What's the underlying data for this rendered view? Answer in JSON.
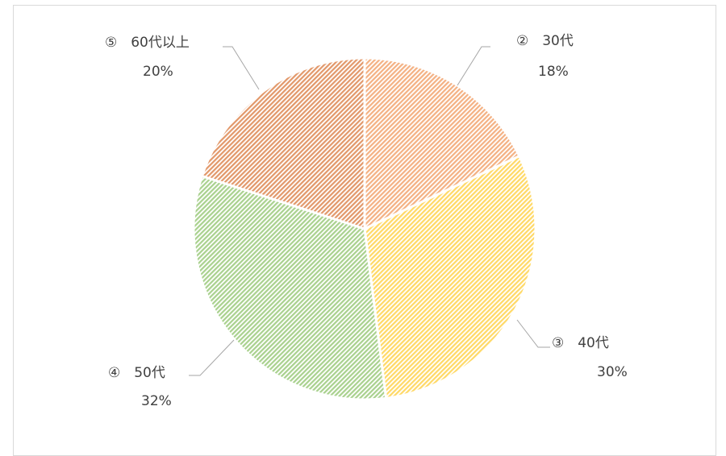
{
  "chart_data": {
    "type": "pie",
    "start_angle_deg": 0,
    "direction": "clockwise",
    "slices": [
      {
        "marker": "②",
        "label": "30代",
        "value": 18,
        "value_label": "18%",
        "color": "#f4b183"
      },
      {
        "marker": "③",
        "label": "40代",
        "value": 30,
        "value_label": "30%",
        "color": "#ffd966"
      },
      {
        "marker": "④",
        "label": "50代",
        "value": 32,
        "value_label": "32%",
        "color": "#a9d18e"
      },
      {
        "marker": "⑤",
        "label": "60代以上",
        "value": 20,
        "value_label": "20%",
        "color": "#e2986a"
      }
    ],
    "fill_pattern": "diagonal-hatch",
    "legend": "none"
  }
}
